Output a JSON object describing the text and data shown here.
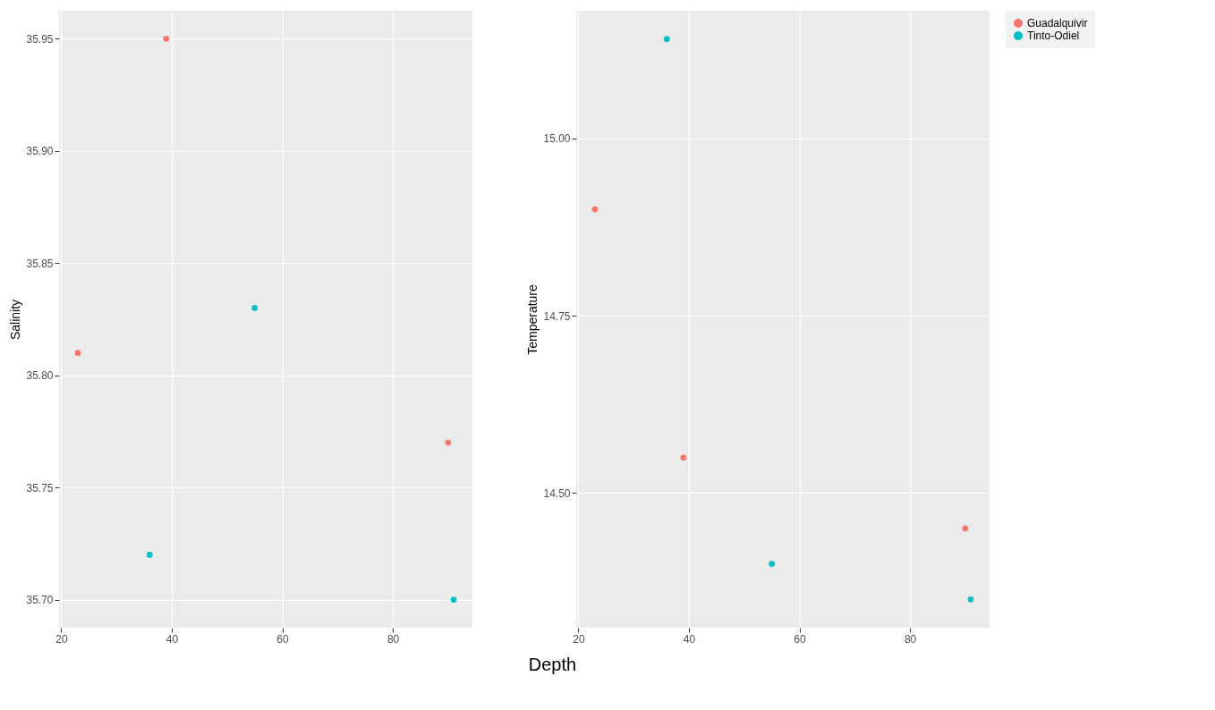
{
  "chart_data": [
    {
      "type": "scatter",
      "xlabel": "Depth",
      "ylabel": "Salinity",
      "xlim": [
        19.6,
        94.4
      ],
      "xticks": [
        20,
        40,
        60,
        80
      ],
      "ylim": [
        35.6875,
        35.9625
      ],
      "yticks": [
        {
          "value": 35.7,
          "label": "35.70"
        },
        35.75,
        {
          "value": 35.8,
          "label": "35.80"
        },
        35.85,
        {
          "value": 35.9,
          "label": "35.90"
        },
        35.95
      ],
      "grid": true,
      "marker": "circle",
      "legend": "right",
      "series": [
        {
          "name": "Guadalquivir",
          "color": "#f8766d",
          "x": [
            23,
            39,
            90
          ],
          "values": [
            35.81,
            35.95,
            35.77
          ]
        },
        {
          "name": "Tinto-Odiel",
          "color": "#00bfc4",
          "x": [
            36,
            55,
            91
          ],
          "values": [
            35.72,
            35.83,
            35.7
          ]
        }
      ]
    },
    {
      "type": "scatter",
      "ylabel": "Temperature",
      "xlim": [
        19.6,
        94.4
      ],
      "xticks": [
        20,
        40,
        60,
        80
      ],
      "ylim": [
        14.31,
        15.18
      ],
      "yticks": [
        {
          "value": 14.5,
          "label": "14.50"
        },
        14.75,
        {
          "value": 15,
          "label": "15.00"
        }
      ],
      "grid": true,
      "marker": "circle",
      "legend": "right",
      "series": [
        {
          "name": "Guadalquivir",
          "color": "#f8766d",
          "x": [
            23,
            39,
            90
          ],
          "values": [
            14.9,
            14.55,
            14.45
          ]
        },
        {
          "name": "Tinto-Odiel",
          "color": "#00bfc4",
          "x": [
            36,
            55,
            91
          ],
          "values": [
            15.14,
            14.4,
            14.35
          ]
        }
      ]
    }
  ]
}
